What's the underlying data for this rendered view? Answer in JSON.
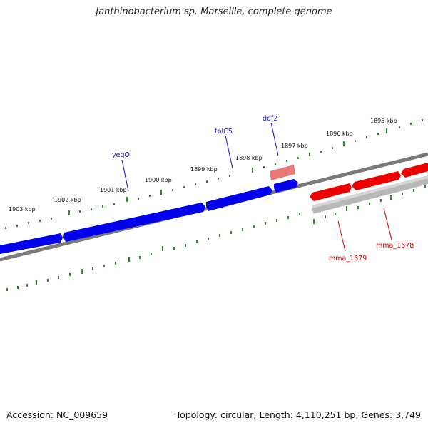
{
  "title": "Janthinobacterium sp. Marseille, complete genome",
  "footer": {
    "accession": "Accession: NC_009659",
    "stats": "Topology: circular; Length: 4,110,251 bp; Genes: 3,749"
  },
  "colors": {
    "forward_gene": "#0000ee",
    "reverse_gene": "#ee0000",
    "rna_gene": "#e87878",
    "backbone": "#888888",
    "reverse_backbone": "#b8b8b8",
    "ticks": "#2a8a2a",
    "label_blue": "#1010cc",
    "label_red": "#cc0000"
  },
  "ticks": [
    {
      "label": "1903 kbp"
    },
    {
      "label": "1902 kbp"
    },
    {
      "label": "1901 kbp"
    },
    {
      "label": "1900 kbp"
    },
    {
      "label": "1899 kbp"
    },
    {
      "label": "1898 kbp"
    },
    {
      "label": "1897 kbp"
    },
    {
      "label": "1896 kbp"
    },
    {
      "label": "1895 kbp"
    }
  ],
  "gene_labels": [
    {
      "name": "yegO",
      "strand": "forward"
    },
    {
      "name": "tolC5",
      "strand": "forward"
    },
    {
      "name": "def2",
      "strand": "forward"
    },
    {
      "name": "mma_1679",
      "strand": "reverse"
    },
    {
      "name": "mma_1678",
      "strand": "reverse"
    }
  ]
}
